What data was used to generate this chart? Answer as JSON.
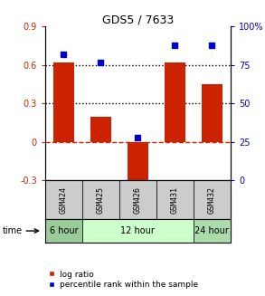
{
  "title": "GDS5 / 7633",
  "samples": [
    "GSM424",
    "GSM425",
    "GSM426",
    "GSM431",
    "GSM432"
  ],
  "log_ratio": [
    0.62,
    0.2,
    -0.35,
    0.62,
    0.45
  ],
  "percentile_rank": [
    82,
    77,
    28,
    88,
    88
  ],
  "ylim_left": [
    -0.3,
    0.9
  ],
  "ylim_right": [
    0,
    100
  ],
  "yticks_left": [
    -0.3,
    0.0,
    0.3,
    0.6,
    0.9
  ],
  "ytick_labels_left": [
    "-0.3",
    "0",
    "0.3",
    "0.6",
    "0.9"
  ],
  "yticks_right": [
    0,
    25,
    50,
    75,
    100
  ],
  "ytick_labels_right": [
    "0",
    "25",
    "50",
    "75",
    "100%"
  ],
  "hline_dotted": [
    0.3,
    0.6
  ],
  "hline_dashed_color": "#cc2200",
  "bar_color": "#cc2200",
  "dot_color": "#0000cc",
  "time_groups": [
    {
      "label": "6 hour",
      "samples": [
        "GSM424"
      ],
      "color": "#99cc99"
    },
    {
      "label": "12 hour",
      "samples": [
        "GSM425",
        "GSM426",
        "GSM431"
      ],
      "color": "#ccffcc"
    },
    {
      "label": "24 hour",
      "samples": [
        "GSM432"
      ],
      "color": "#aaddaa"
    }
  ],
  "legend_bar_label": "log ratio",
  "legend_dot_label": "percentile rank within the sample",
  "time_label": "time",
  "bg_color": "#ffffff",
  "sample_label_bg": "#cccccc",
  "title_fontsize": 9,
  "tick_fontsize": 7,
  "label_fontsize": 7,
  "legend_fontsize": 6.5
}
